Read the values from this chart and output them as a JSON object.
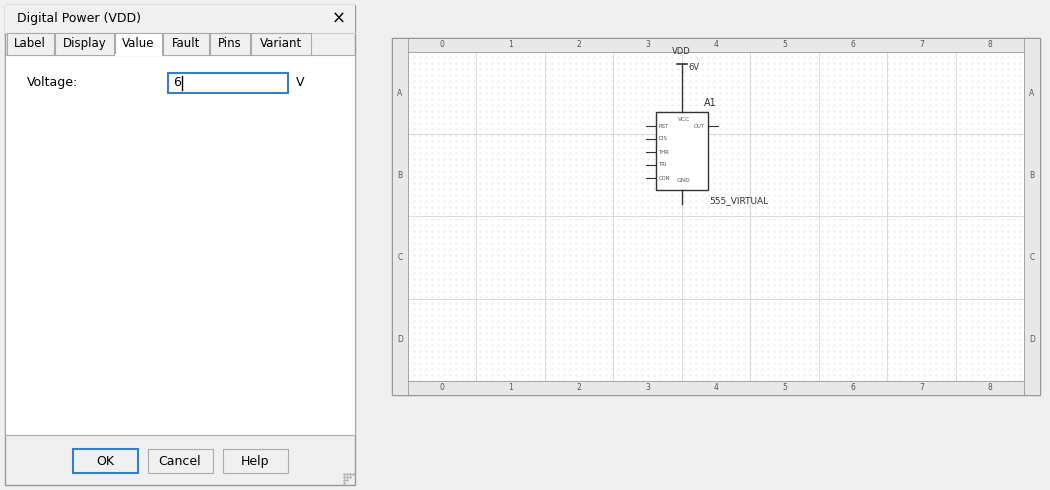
{
  "fig_width": 10.5,
  "fig_height": 4.9,
  "bg_color": "#f0f0f0",
  "dialog_title": "Digital Power (VDD)",
  "tabs": [
    "Label",
    "Display",
    "Value",
    "Fault",
    "Pins",
    "Variant"
  ],
  "active_tab": "Value",
  "tab_active_color": "#ffffff",
  "tab_inactive_color": "#f0f0f0",
  "voltage_label": "Voltage:",
  "voltage_value": "6",
  "voltage_unit": "V",
  "input_border": "#3a7ebf",
  "buttons": [
    "OK",
    "Cancel",
    "Help"
  ],
  "ok_border": "#3a7ebf",
  "col_labels": [
    "0",
    "1",
    "2",
    "3",
    "4",
    "5",
    "6",
    "7",
    "8"
  ],
  "row_labels": [
    "A",
    "B",
    "C",
    "D"
  ],
  "vdd_label": "VDD",
  "vdd_value": "6V",
  "chip_label": "A1",
  "chip_name": "555_VIRTUAL",
  "left_pins": [
    "RST",
    "DIS",
    "THR",
    "TRI",
    "CON"
  ],
  "right_pins": [
    "OUT"
  ],
  "top_pin": "VCC",
  "bottom_pin": "GND",
  "text_color": "#333333",
  "wire_color": "#333333"
}
